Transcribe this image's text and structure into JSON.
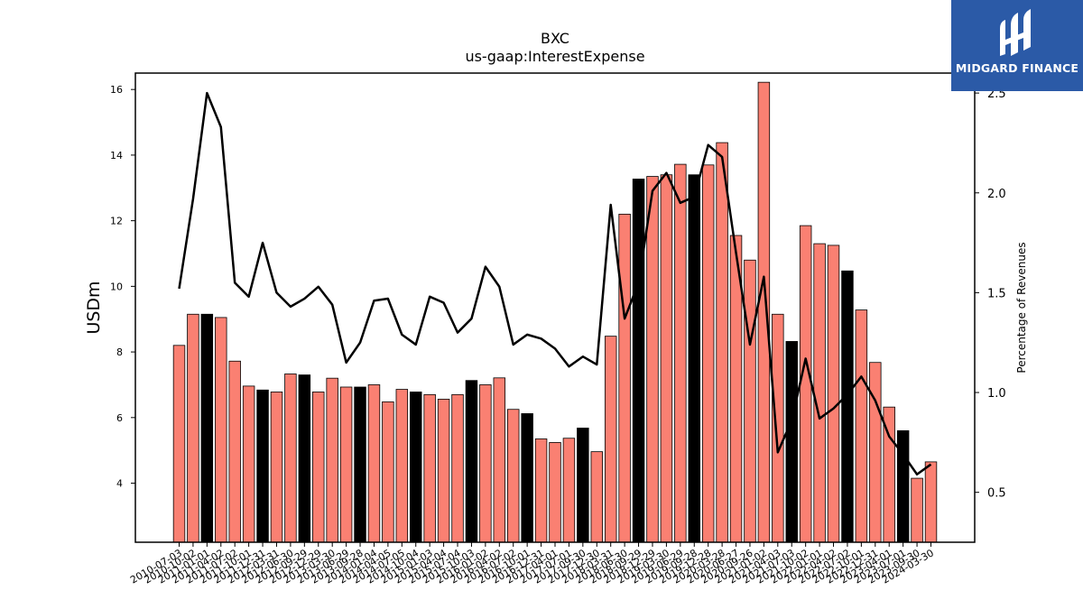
{
  "title": "BXC",
  "subtitle": "us-gaap:InterestExpense",
  "logo_text": "MIDGARD FINANCE",
  "colors": {
    "bar_default": "#fa8072",
    "bar_highlight": "#000000",
    "line": "#000000",
    "logo_bg": "#2b5aa7"
  },
  "chart_data": {
    "type": "bar",
    "ylabel": "USDm",
    "y2label": "Percentage of Revenues",
    "ylim": [
      2.2,
      16.5
    ],
    "y2lim": [
      0.25,
      2.6
    ],
    "yticks": [
      4,
      6,
      8,
      10,
      12,
      14,
      16
    ],
    "y2ticks": [
      0.5,
      1.0,
      1.5,
      2.0,
      2.5
    ],
    "y2tick_labels": [
      "0.5",
      "1.0",
      "1.5",
      "2.0",
      "2.5"
    ],
    "categories": [
      "2010-07-03",
      "2010-10-02",
      "2011-01-01",
      "2011-04-02",
      "2011-07-02",
      "2011-10-01",
      "2011-12-31",
      "2012-03-31",
      "2012-06-30",
      "2012-09-29",
      "2012-12-29",
      "2013-03-30",
      "2013-06-29",
      "2013-09-28",
      "2014-01-04",
      "2014-04-05",
      "2014-07-05",
      "2014-10-04",
      "2015-01-03",
      "2015-04-04",
      "2015-07-04",
      "2015-10-03",
      "2016-01-02",
      "2016-04-02",
      "2016-07-02",
      "2016-10-01",
      "2016-12-31",
      "2017-04-01",
      "2017-07-01",
      "2017-09-30",
      "2017-12-30",
      "2018-03-31",
      "2018-06-30",
      "2018-09-29",
      "2018-12-29",
      "2019-03-30",
      "2019-06-29",
      "2019-09-28",
      "2019-12-28",
      "2020-03-28",
      "2020-06-27",
      "2020-09-26",
      "2021-01-02",
      "2021-04-03",
      "2021-07-03",
      "2021-10-02",
      "2022-01-01",
      "2022-04-02",
      "2022-07-02",
      "2022-10-01",
      "2022-12-31",
      "2023-04-01",
      "2023-07-01",
      "2023-09-30",
      "2024-03-30"
    ],
    "xtick_labels": [
      "2010-07-03",
      "2010-10-02",
      "2011-01-01",
      "2011-04-02",
      "2011-07-02",
      "2011-10-01",
      "2011-12-31",
      "2012-03-31",
      "2012-06-30",
      "2012-09-29",
      "2012-12-29",
      "2013-03-30",
      "2013-06-29",
      "2013-09-28",
      "2014-01-04",
      "2014-04-05",
      "2014-07-05",
      "2014-10-04",
      "2015-01-03",
      "2015-04-04",
      "2015-07-04",
      "2015-10-03",
      "2016-01-02",
      "2016-04-02",
      "2016-07-02",
      "2016-10-01",
      "2016-12-31",
      "2017-04-01",
      "2017-07-01",
      "2017-09-30",
      "2017-12-30",
      "2018-03-31",
      "2018-06-30",
      "2018-09-29",
      "2018-12-29",
      "2019-03-30",
      "2019-06-29",
      "2019-09-28",
      "2019-12-28",
      "2020-03-28",
      "2020-06-27",
      "2020-09-26",
      "2021-01-02",
      "2021-04-03",
      "2021-07-03",
      "2021-10-02",
      "2022-01-01",
      "2022-04-02",
      "2022-07-02",
      "2022-10-01",
      "2022-12-31",
      "2023-04-01",
      "2023-07-01",
      "2023-09-30",
      "2024-03-30"
    ],
    "values": [
      8.2,
      9.15,
      9.15,
      9.05,
      7.72,
      6.96,
      6.84,
      6.78,
      7.33,
      7.3,
      6.78,
      7.2,
      6.93,
      6.93,
      7.0,
      6.48,
      6.86,
      6.78,
      6.7,
      6.56,
      6.7,
      7.13,
      7.0,
      7.21,
      6.25,
      6.12,
      5.35,
      5.24,
      5.37,
      5.68,
      4.96,
      8.48,
      12.2,
      13.27,
      13.35,
      13.4,
      13.72,
      13.4,
      13.7,
      14.38,
      11.55,
      10.8,
      16.22,
      9.15,
      8.32,
      11.85,
      11.3,
      11.25,
      10.47,
      9.28,
      7.68,
      6.32,
      5.6,
      4.15,
      4.65
    ],
    "highlight": [
      false,
      false,
      true,
      false,
      false,
      false,
      true,
      false,
      false,
      true,
      false,
      false,
      false,
      true,
      false,
      false,
      false,
      true,
      false,
      false,
      false,
      true,
      false,
      false,
      false,
      true,
      false,
      false,
      false,
      true,
      false,
      false,
      false,
      true,
      false,
      false,
      false,
      true,
      false,
      false,
      false,
      false,
      false,
      false,
      true,
      false,
      false,
      false,
      true,
      false,
      false,
      false,
      true,
      false,
      false
    ],
    "series": [
      {
        "values": [
          1.52,
          1.97,
          2.5,
          2.33,
          1.55,
          1.48,
          1.75,
          1.5,
          1.43,
          1.47,
          1.53,
          1.44,
          1.15,
          1.25,
          1.46,
          1.47,
          1.29,
          1.24,
          1.48,
          1.45,
          1.3,
          1.37,
          1.63,
          1.53,
          1.24,
          1.29,
          1.27,
          1.22,
          1.13,
          1.18,
          1.14,
          1.94,
          1.37,
          1.55,
          2.01,
          2.1,
          1.95,
          1.98,
          2.24,
          2.18,
          1.7,
          1.24,
          1.58,
          0.7,
          0.86,
          1.17,
          0.87,
          0.92,
          0.99,
          1.08,
          0.96,
          0.78,
          0.69,
          0.59,
          0.64
        ],
        "axis": "right"
      }
    ]
  }
}
